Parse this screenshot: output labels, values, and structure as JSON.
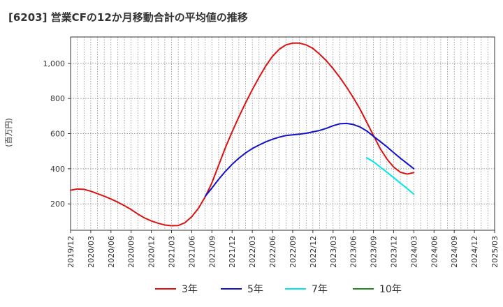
{
  "chart_data": {
    "type": "line",
    "title": "[6203]  営業CFの12か月移動合計の平均値の推移",
    "ylabel": "(百万円)",
    "xlabel": "",
    "x_ticks": [
      "2019/12",
      "2020/03",
      "2020/06",
      "2020/09",
      "2020/12",
      "2021/03",
      "2021/06",
      "2021/09",
      "2021/12",
      "2022/03",
      "2022/06",
      "2022/09",
      "2022/12",
      "2023/03",
      "2023/06",
      "2023/09",
      "2023/12",
      "2024/03",
      "2024/06",
      "2024/09",
      "2024/12",
      "2025/03"
    ],
    "y_ticks": [
      200,
      400,
      600,
      800,
      1000
    ],
    "y_tick_labels": [
      "200",
      "400",
      "600",
      "800",
      "1,000"
    ],
    "ylim": [
      50,
      1150
    ],
    "grid": true,
    "legend_position": "bottom",
    "series": [
      {
        "name": "3年",
        "color": "#dd1111",
        "x": [
          "2019/12",
          "2020/01",
          "2020/02",
          "2020/03",
          "2020/04",
          "2020/05",
          "2020/06",
          "2020/07",
          "2020/08",
          "2020/09",
          "2020/10",
          "2020/11",
          "2020/12",
          "2021/01",
          "2021/02",
          "2021/03",
          "2021/04",
          "2021/05",
          "2021/06",
          "2021/07",
          "2021/08",
          "2021/09",
          "2021/10",
          "2021/11",
          "2021/12",
          "2022/01",
          "2022/02",
          "2022/03",
          "2022/04",
          "2022/05",
          "2022/06",
          "2022/07",
          "2022/08",
          "2022/09",
          "2022/10",
          "2022/11",
          "2022/12",
          "2023/01",
          "2023/02",
          "2023/03",
          "2023/04",
          "2023/05",
          "2023/06",
          "2023/07",
          "2023/08",
          "2023/09",
          "2023/10",
          "2023/11",
          "2023/12",
          "2024/01",
          "2024/02",
          "2024/03"
        ],
        "values": [
          278,
          285,
          283,
          272,
          258,
          244,
          228,
          210,
          190,
          168,
          142,
          120,
          103,
          90,
          80,
          76,
          77,
          93,
          127,
          175,
          240,
          320,
          420,
          520,
          610,
          695,
          775,
          850,
          920,
          985,
          1040,
          1080,
          1105,
          1115,
          1115,
          1105,
          1085,
          1052,
          1015,
          970,
          920,
          865,
          805,
          740,
          665,
          590,
          515,
          455,
          410,
          380,
          370,
          378
        ]
      },
      {
        "name": "5年",
        "color": "#1111cc",
        "x": [
          "2021/08",
          "2021/09",
          "2021/10",
          "2021/11",
          "2021/12",
          "2022/01",
          "2022/02",
          "2022/03",
          "2022/04",
          "2022/05",
          "2022/06",
          "2022/07",
          "2022/08",
          "2022/09",
          "2022/10",
          "2022/11",
          "2022/12",
          "2023/01",
          "2023/02",
          "2023/03",
          "2023/04",
          "2023/05",
          "2023/06",
          "2023/07",
          "2023/08",
          "2023/09",
          "2023/10",
          "2023/11",
          "2023/12",
          "2024/01",
          "2024/02",
          "2024/03"
        ],
        "values": [
          243,
          290,
          340,
          385,
          425,
          460,
          490,
          515,
          535,
          553,
          568,
          580,
          589,
          593,
          597,
          602,
          610,
          618,
          630,
          645,
          656,
          658,
          652,
          638,
          615,
          585,
          555,
          525,
          492,
          460,
          430,
          400
        ]
      },
      {
        "name": "7年",
        "color": "#00e5ee",
        "x": [
          "2023/08",
          "2023/09",
          "2023/10",
          "2023/11",
          "2023/12",
          "2024/01",
          "2024/02",
          "2024/03"
        ],
        "values": [
          462,
          440,
          410,
          380,
          350,
          318,
          288,
          255
        ]
      },
      {
        "name": "10年",
        "color": "#228b22",
        "x": [],
        "values": []
      }
    ]
  }
}
